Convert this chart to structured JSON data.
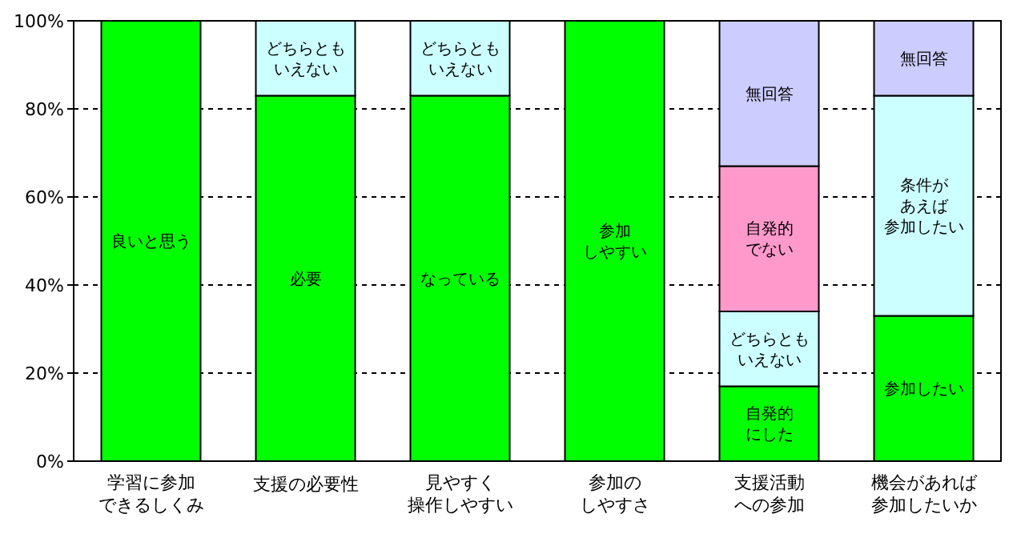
{
  "chart_data": {
    "type": "bar",
    "stacked": true,
    "categories": [
      "学習に参加できるしくみ",
      "支援の必要性",
      "見やすく操作しやすい",
      "参加のしやすさ",
      "支援活動への参加",
      "機会があれば参加したいか"
    ],
    "series": [
      {
        "color": "#00ff00",
        "values": [
          100,
          83,
          83,
          100,
          17,
          33
        ],
        "value_labels": [
          "良いと思う",
          "必要",
          "なっている",
          "参加しやすい",
          "自発的にした",
          "参加したい"
        ]
      },
      {
        "color": "#ccffff",
        "values": [
          null,
          17,
          17,
          null,
          17,
          50
        ],
        "value_labels": [
          null,
          "どちらともいえない",
          "どちらともいえない",
          null,
          "どちらともいえない",
          "条件があえば参加したい"
        ]
      },
      {
        "color": "#ff99cc",
        "values": [
          null,
          null,
          null,
          null,
          33,
          null
        ],
        "value_labels": [
          null,
          null,
          null,
          null,
          "自発的でない",
          null
        ]
      },
      {
        "color": "#ccccff",
        "values": [
          null,
          null,
          null,
          null,
          33,
          17
        ],
        "value_labels": [
          null,
          null,
          null,
          null,
          "無回答",
          "無回答"
        ]
      }
    ],
    "ylim": [
      0,
      100
    ],
    "yticks": [
      {
        "value": 0,
        "label": "0%"
      },
      {
        "value": 20,
        "label": "20%"
      },
      {
        "value": 40,
        "label": "40%"
      },
      {
        "value": 60,
        "label": "60%"
      },
      {
        "value": 80,
        "label": "80%"
      },
      {
        "value": 100,
        "label": "100%"
      }
    ],
    "grid": "y"
  }
}
